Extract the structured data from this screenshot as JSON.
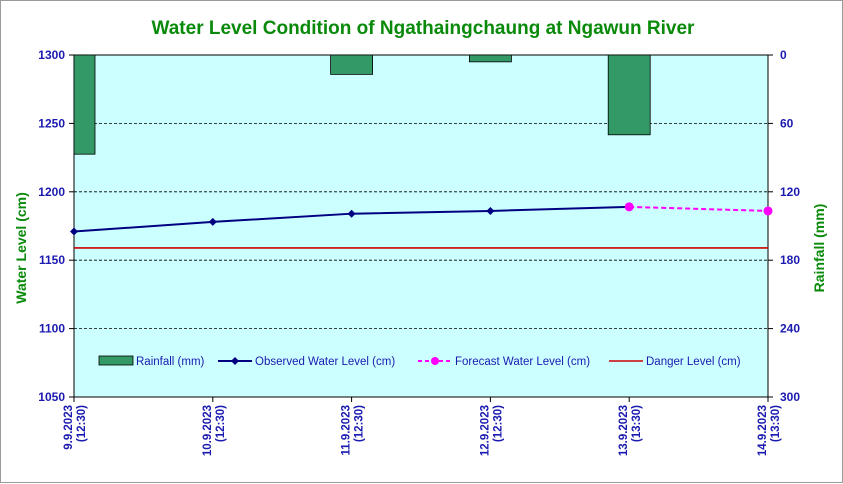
{
  "chart_data": {
    "type": "line",
    "title": "Water Level Condition of  Ngathaingchaung at Ngawun River",
    "ylabel_left": "Water Level (cm)",
    "ylabel_right": "Rainfall (mm)",
    "categories": [
      "9.9.2023 (12:30)",
      "10.9.2023 (12:30)",
      "11.9.2023 (12:30)",
      "12.9.2023 (12:30)",
      "13.9.2023 (13:30)",
      "14.9.2023 (13:30)"
    ],
    "y_left": {
      "min": 1050,
      "max": 1300,
      "ticks": [
        1300,
        1250,
        1200,
        1150,
        1100,
        1050
      ]
    },
    "y_right": {
      "min": 0,
      "max": 300,
      "inverted": true,
      "ticks": [
        0,
        60,
        120,
        180,
        240,
        300
      ]
    },
    "grid": true,
    "background_color": "#ccffff",
    "legend_position": "bottom-inside",
    "series": [
      {
        "name": "Rainfall (mm)",
        "type": "bar",
        "axis": "right",
        "color": "#339966",
        "values": [
          87,
          0,
          17,
          6,
          70,
          0
        ]
      },
      {
        "name": "Observed Water Level (cm)",
        "type": "line",
        "axis": "left",
        "color": "#000080",
        "marker": "diamond",
        "values": [
          1171,
          1178,
          1184,
          1186,
          1189,
          null
        ]
      },
      {
        "name": "Forecast Water Level (cm)",
        "type": "line",
        "axis": "left",
        "color": "#ff00ff",
        "marker": "circle",
        "dashed": true,
        "values": [
          null,
          null,
          null,
          null,
          1189,
          1186
        ]
      },
      {
        "name": "Danger Level (cm)",
        "type": "line",
        "axis": "left",
        "color": "#cc0000",
        "values": [
          1159,
          1159,
          1159,
          1159,
          1159,
          1159
        ]
      }
    ]
  }
}
